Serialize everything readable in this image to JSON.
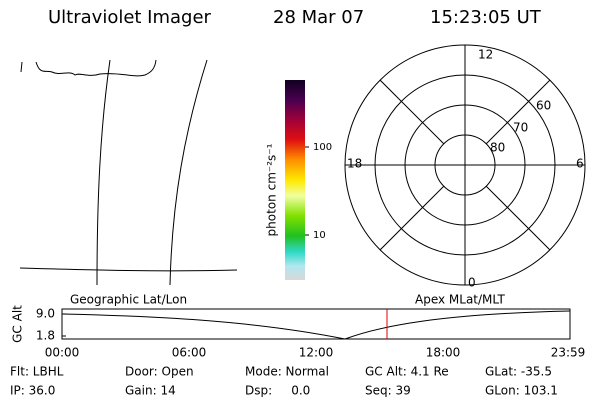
{
  "header": {
    "title": "Ultraviolet Imager",
    "date": "28 Mar 07",
    "time": "15:23:05 UT"
  },
  "colorbar": {
    "label": "photon cm⁻²s⁻¹",
    "ticks": [
      "100",
      "10"
    ]
  },
  "polar": {
    "mlt": [
      "12",
      "18",
      "6",
      "0"
    ],
    "mlat": [
      "60",
      "70",
      "80"
    ]
  },
  "panels": {
    "left_label": "Geographic Lat/Lon",
    "right_label": "Apex MLat/MLT"
  },
  "altitude": {
    "axis_label": "GC Alt",
    "ticks": [
      "9.0",
      "1.8"
    ],
    "times": [
      "00:00",
      "06:00",
      "12:00",
      "18:00",
      "23:59"
    ]
  },
  "footer": {
    "rows": [
      [
        "Flt: LBHL",
        "Door: Open",
        "Mode: Normal",
        "GC Alt: 4.1 Re",
        "GLat: -35.5"
      ],
      [
        "IP: 36.0",
        "Gain: 14",
        "Dsp:     0.0",
        "Seq: 39",
        "GLon: 103.1"
      ]
    ]
  }
}
